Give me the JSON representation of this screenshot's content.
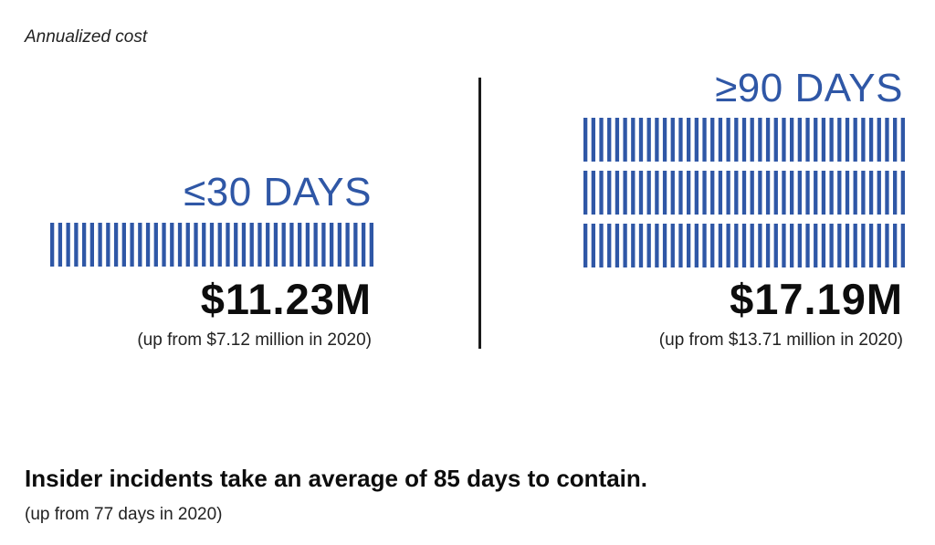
{
  "caption": "Annualized cost",
  "chart_data": {
    "type": "bar",
    "title": "Annualized cost",
    "categories": [
      "≤30 DAYS",
      "≥90 DAYS"
    ],
    "values": [
      11.23,
      17.19
    ],
    "value_labels": [
      "$11.23M",
      "$17.19M"
    ],
    "notes": [
      "(up from $7.12 million in 2020)",
      "(up from $13.71 million in 2020)"
    ],
    "bar_rows": [
      1,
      3
    ],
    "bar_color": "#2f57a6"
  },
  "left": {
    "label": "≤30 DAYS",
    "value": "$11.23M",
    "note": "(up from $7.12 million in 2020)"
  },
  "right": {
    "label": "≥90 DAYS",
    "value": "$17.19M",
    "note": "(up from $13.71 million in 2020)"
  },
  "headline": "Insider incidents take an average of 85 days to contain.",
  "subline": "(up from 77 days in 2020)"
}
